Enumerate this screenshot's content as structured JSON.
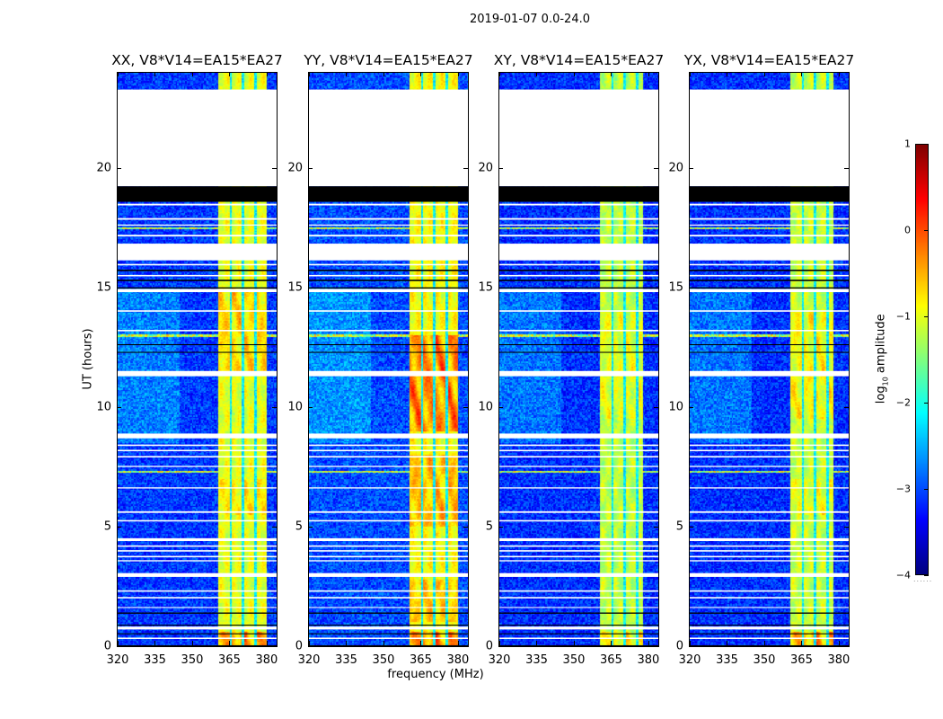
{
  "figure": {
    "suptitle": "2019-01-07 0.0-24.0",
    "xlabel": "frequency (MHz)",
    "ylabel": "UT (hours)"
  },
  "colorbar": {
    "label_prefix": "log",
    "label_sub": "10",
    "label_suffix": " amplitude",
    "colormap": "jet",
    "range": [
      -4,
      1
    ],
    "ticks": [
      {
        "value": 1,
        "label": "1"
      },
      {
        "value": 0,
        "label": "0"
      },
      {
        "value": -1,
        "label": "−1"
      },
      {
        "value": -2,
        "label": "−2"
      },
      {
        "value": -3,
        "label": "−3"
      },
      {
        "value": -4,
        "label": "−4"
      }
    ],
    "dots": "......"
  },
  "flags": {
    "white_hours": [
      [
        19.25,
        23.3
      ],
      [
        18.45,
        18.52
      ],
      [
        17.85,
        17.92
      ],
      [
        17.6,
        17.65
      ],
      [
        17.15,
        17.22
      ],
      [
        16.15,
        16.85
      ],
      [
        15.94,
        16.0
      ],
      [
        15.48,
        15.54
      ],
      [
        14.82,
        14.95
      ],
      [
        14.0,
        14.06
      ],
      [
        13.18,
        13.24
      ],
      [
        11.3,
        11.52
      ],
      [
        8.7,
        8.9
      ],
      [
        8.38,
        8.44
      ],
      [
        8.16,
        8.22
      ],
      [
        7.9,
        7.96
      ],
      [
        7.5,
        7.55
      ],
      [
        6.6,
        6.65
      ],
      [
        5.58,
        5.65
      ],
      [
        5.22,
        5.28
      ],
      [
        4.4,
        4.52
      ],
      [
        4.16,
        4.22
      ],
      [
        3.96,
        4.02
      ],
      [
        3.72,
        3.78
      ],
      [
        3.55,
        3.6
      ],
      [
        2.9,
        3.06
      ],
      [
        2.28,
        2.34
      ],
      [
        2.0,
        2.06
      ],
      [
        1.6,
        1.64
      ],
      [
        0.7,
        0.82
      ],
      [
        0.3,
        0.36
      ]
    ],
    "black_hours": [
      [
        18.6,
        19.25
      ],
      [
        15.7,
        15.76
      ],
      [
        15.28,
        15.34
      ],
      [
        14.97,
        15.02
      ],
      [
        12.6,
        12.64
      ],
      [
        12.28,
        12.32
      ],
      [
        1.36,
        1.41
      ],
      [
        0.86,
        0.9
      ],
      [
        0.5,
        0.54
      ],
      [
        0.0,
        0.04
      ]
    ],
    "rfi_hours": [
      13.0,
      17.5,
      7.3
    ]
  },
  "chart_data": [
    {
      "type": "heatmap",
      "title": "XX, V8*V14=EA15*EA27",
      "xlim": [
        320,
        384
      ],
      "ylim": [
        0,
        24
      ],
      "xticks": [
        320,
        335,
        350,
        365,
        380
      ],
      "yticks": [
        0,
        5,
        10,
        15,
        20
      ],
      "background_level": -3.1,
      "band_MHz": [
        360.5,
        380
      ],
      "band_level": -1.0,
      "band_gaps_MHz": [
        365.5,
        370.5,
        375.5
      ],
      "hot_intervals": [
        [
          11.5,
          15.0,
          0.45
        ],
        [
          5.5,
          7.0,
          0.3
        ],
        [
          0.0,
          0.6,
          0.9
        ]
      ]
    },
    {
      "type": "heatmap",
      "title": "YY, V8*V14=EA15*EA27",
      "xlim": [
        320,
        384
      ],
      "ylim": [
        0,
        24
      ],
      "xticks": [
        320,
        335,
        350,
        365,
        380
      ],
      "yticks": [
        0,
        5,
        10,
        15,
        20
      ],
      "background_level": -3.0,
      "band_MHz": [
        360.5,
        380
      ],
      "band_level": -0.9,
      "band_gaps_MHz": [
        365.5,
        370.5,
        375.5
      ],
      "hot_intervals": [
        [
          9.0,
          13.0,
          0.9
        ],
        [
          5.0,
          8.0,
          0.5
        ],
        [
          1.0,
          2.8,
          0.4
        ],
        [
          0.0,
          0.6,
          0.9
        ]
      ]
    },
    {
      "type": "heatmap",
      "title": "XY, V8*V14=EA15*EA27",
      "xlim": [
        320,
        384
      ],
      "ylim": [
        0,
        24
      ],
      "xticks": [
        320,
        335,
        350,
        365,
        380
      ],
      "yticks": [
        0,
        5,
        10,
        15,
        20
      ],
      "background_level": -3.15,
      "band_MHz": [
        360.5,
        378
      ],
      "band_level": -1.2,
      "band_gaps_MHz": [
        365.5,
        370.5,
        375.5
      ],
      "hot_intervals": [
        [
          9.5,
          14.0,
          0.3
        ],
        [
          0.0,
          0.6,
          0.6
        ]
      ]
    },
    {
      "type": "heatmap",
      "title": "YX, V8*V14=EA15*EA27",
      "xlim": [
        320,
        384
      ],
      "ylim": [
        0,
        24
      ],
      "xticks": [
        320,
        335,
        350,
        365,
        380
      ],
      "yticks": [
        0,
        5,
        10,
        15,
        20
      ],
      "background_level": -3.15,
      "band_MHz": [
        360.5,
        378
      ],
      "band_level": -1.15,
      "band_gaps_MHz": [
        365.5,
        370.5,
        375.5
      ],
      "hot_intervals": [
        [
          9.5,
          14.0,
          0.4
        ],
        [
          5.5,
          7.0,
          0.3
        ],
        [
          0.0,
          0.6,
          1.0
        ]
      ]
    }
  ]
}
